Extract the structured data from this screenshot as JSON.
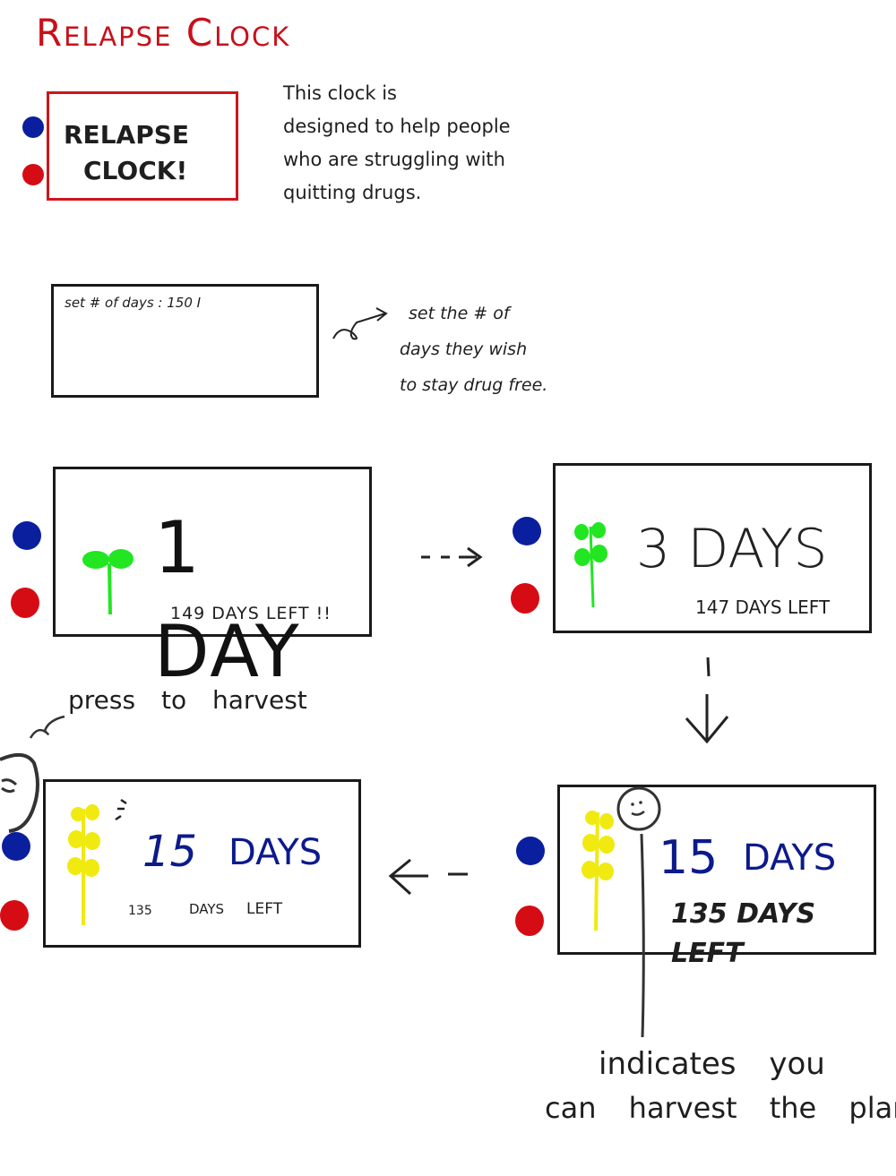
{
  "colors": {
    "title_red": "#c8101a",
    "frame_red": "#d0141c",
    "button_blue": "#0a1f9e",
    "button_red": "#d60c14",
    "sprout_green": "#22e622",
    "plant_yellow": "#f0ea10",
    "days_navy": "#0c1a8c",
    "ink": "#1e1e1e"
  },
  "title": "Relapse Clock",
  "intro": {
    "device_label_line1": "RELAPSE",
    "device_label_line2": "CLOCK!",
    "description_lines": [
      "This clock is",
      "designed to help people",
      "who are struggling with",
      "quitting drugs."
    ]
  },
  "setup": {
    "input_text": "set # of days : 150 I",
    "note_lines": [
      "set the # of",
      "days they wish",
      "to stay drug free."
    ]
  },
  "screens": {
    "day1": {
      "days": "1 DAY",
      "left": "149 DAYS LEFT !!",
      "plant_icon": "sprout-icon"
    },
    "day3": {
      "days": "3 DAYS",
      "left": "147 DAYS LEFT",
      "plant_icon": "seedling-icon"
    },
    "day15_ready": {
      "days_num": "15",
      "days_word": "DAYS",
      "left": "135 DAYS LEFT",
      "plant_icon": "wheat-icon",
      "indicator_icon": "face-icon"
    },
    "day15_harvest": {
      "days_num": "15",
      "days_word": "DAYS",
      "left_num": "135",
      "left_word1": "DAYS",
      "left_word2": "LEFT",
      "plant_icon": "wheat-icon"
    }
  },
  "annotations": {
    "press_to_harvest": "press to harvest",
    "indicator_line1": "indicates you",
    "indicator_line2": "can harvest the plant"
  }
}
